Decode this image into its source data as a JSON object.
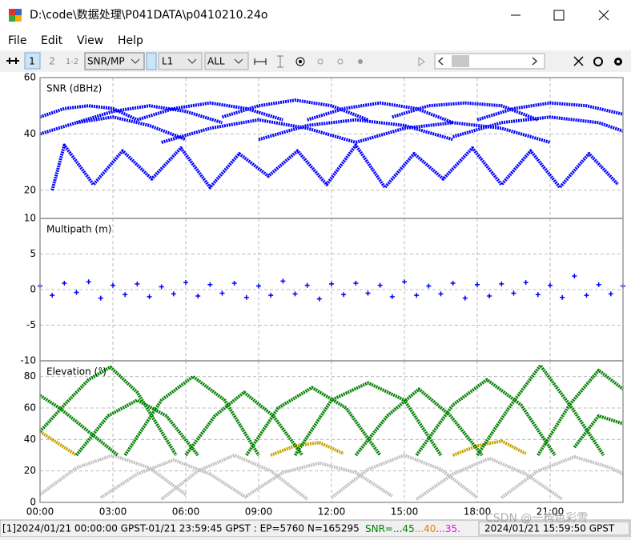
{
  "window": {
    "title": "D:\\code\\数据处理\\P041DATA\\p0410210.24o"
  },
  "menu": [
    "File",
    "Edit",
    "View",
    "Help"
  ],
  "toolbar": {
    "buttons": [
      "1",
      "2",
      "1-2"
    ],
    "selects": [
      "SNR/MP",
      "L1",
      "ALL"
    ]
  },
  "chart_data": [
    {
      "type": "line",
      "title": "SNR (dBHz)",
      "ylim": [
        10,
        60
      ],
      "yticks": [
        10,
        20,
        40,
        60
      ],
      "grid": true,
      "series": [
        {
          "color": "#0000ff",
          "x": [
            0,
            1,
            2,
            3,
            4
          ],
          "values": [
            46,
            49,
            50,
            49,
            45
          ]
        },
        {
          "color": "#0000ff",
          "x": [
            1.5,
            3,
            4.5,
            6,
            7.5
          ],
          "values": [
            44,
            48,
            50,
            48,
            44
          ]
        },
        {
          "color": "#0000ff",
          "x": [
            4,
            5.5,
            7,
            8.5,
            10
          ],
          "values": [
            45,
            49,
            51,
            49,
            45
          ]
        },
        {
          "color": "#0000ff",
          "x": [
            7.5,
            9,
            10.5,
            12,
            13.5
          ],
          "values": [
            46,
            50,
            52,
            50,
            45
          ]
        },
        {
          "color": "#0000ff",
          "x": [
            11,
            12.5,
            14,
            15.5,
            17
          ],
          "values": [
            45,
            49,
            51,
            49,
            44
          ]
        },
        {
          "color": "#0000ff",
          "x": [
            14.5,
            16,
            17.5,
            19,
            20.5
          ],
          "values": [
            46,
            50,
            51,
            50,
            45
          ]
        },
        {
          "color": "#0000ff",
          "x": [
            18,
            19.5,
            21,
            22.5,
            24
          ],
          "values": [
            45,
            49,
            51,
            50,
            47
          ]
        },
        {
          "color": "#0000ff",
          "x": [
            0,
            1.5,
            3,
            4.5,
            6
          ],
          "values": [
            40,
            44,
            46,
            43,
            38
          ]
        },
        {
          "color": "#0000ff",
          "x": [
            5,
            7,
            9,
            11,
            13
          ],
          "values": [
            37,
            42,
            45,
            42,
            37
          ]
        },
        {
          "color": "#0000ff",
          "x": [
            9,
            11,
            13,
            15,
            17
          ],
          "values": [
            38,
            43,
            45,
            43,
            38
          ]
        },
        {
          "color": "#0000ff",
          "x": [
            13,
            15,
            17,
            19,
            21
          ],
          "values": [
            37,
            42,
            44,
            42,
            37
          ]
        },
        {
          "color": "#0000ff",
          "x": [
            17,
            19,
            21,
            23,
            24
          ],
          "values": [
            39,
            44,
            46,
            44,
            41
          ]
        },
        {
          "color": "#0000ff",
          "x": [
            0.5,
            1,
            2.2,
            3.4,
            4.6,
            5.8,
            7,
            8.2,
            9.4,
            10.6,
            11.8,
            13,
            14.2,
            15.4,
            16.6,
            17.8,
            19,
            20.2,
            21.4,
            22.6,
            23.8
          ],
          "values": [
            20,
            36,
            22,
            34,
            24,
            35,
            21,
            33,
            25,
            34,
            22,
            36,
            21,
            33,
            24,
            35,
            22,
            34,
            21,
            33,
            22
          ]
        }
      ]
    },
    {
      "type": "scatter",
      "title": "Multipath (m)",
      "ylim": [
        -10,
        10
      ],
      "yticks": [
        -10,
        -5,
        0,
        5
      ],
      "grid": true,
      "series": [
        {
          "color": "#0000ff",
          "x": [
            0,
            0.5,
            1,
            1.5,
            2,
            2.5,
            3,
            3.5,
            4,
            4.5,
            5,
            5.5,
            6,
            6.5,
            7,
            7.5,
            8,
            8.5,
            9,
            9.5,
            10,
            10.5,
            11,
            11.5,
            12,
            12.5,
            13,
            13.5,
            14,
            14.5,
            15,
            15.5,
            16,
            16.5,
            17,
            17.5,
            18,
            18.5,
            19,
            19.5,
            20,
            20.5,
            21,
            21.5,
            22,
            22.5,
            23,
            23.5,
            24
          ],
          "values": [
            0.5,
            -0.8,
            0.9,
            -0.4,
            1.1,
            -1.2,
            0.6,
            -0.7,
            0.8,
            -1.0,
            0.4,
            -0.6,
            1.0,
            -0.9,
            0.7,
            -0.5,
            0.9,
            -1.1,
            0.5,
            -0.8,
            1.2,
            -0.6,
            0.6,
            -1.3,
            0.8,
            -0.7,
            0.9,
            -0.5,
            0.6,
            -1.0,
            1.1,
            -0.8,
            0.5,
            -0.6,
            0.9,
            -1.2,
            0.7,
            -0.9,
            0.8,
            -0.5,
            1.0,
            -0.7,
            0.6,
            -1.1,
            1.9,
            -0.8,
            0.7,
            -0.6,
            0.5
          ]
        }
      ]
    },
    {
      "type": "line",
      "title": "Elevation (°)",
      "ylim": [
        0,
        90
      ],
      "yticks": [
        0,
        20,
        40,
        60,
        80
      ],
      "grid": true,
      "xlim": [
        0,
        24
      ],
      "xticks": [
        {
          "value": 0,
          "label": "00:00"
        },
        {
          "value": 3,
          "label": "03:00"
        },
        {
          "value": 6,
          "label": "06:00"
        },
        {
          "value": 9,
          "label": "09:00"
        },
        {
          "value": 12,
          "label": "12:00"
        },
        {
          "value": 15,
          "label": "15:00"
        },
        {
          "value": 18,
          "label": "18:00"
        },
        {
          "value": 21,
          "label": "21:00"
        }
      ],
      "series": [
        {
          "color": "#c0c0c0",
          "x": [
            0,
            1.5,
            3,
            4.5,
            6
          ],
          "values": [
            5,
            22,
            30,
            22,
            5
          ]
        },
        {
          "color": "#c0c0c0",
          "x": [
            2.5,
            4,
            5.5,
            7,
            8.5
          ],
          "values": [
            3,
            18,
            27,
            18,
            3
          ]
        },
        {
          "color": "#c0c0c0",
          "x": [
            5,
            6.5,
            8,
            9.5,
            11
          ],
          "values": [
            2,
            20,
            30,
            20,
            2
          ]
        },
        {
          "color": "#c0c0c0",
          "x": [
            8.5,
            10,
            11.5,
            13,
            14.5
          ],
          "values": [
            4,
            19,
            25,
            19,
            4
          ]
        },
        {
          "color": "#c0c0c0",
          "x": [
            12,
            13.5,
            15,
            16.5,
            18
          ],
          "values": [
            3,
            21,
            30,
            21,
            3
          ]
        },
        {
          "color": "#c0c0c0",
          "x": [
            15.5,
            17,
            18.5,
            20,
            21.5
          ],
          "values": [
            2,
            18,
            28,
            18,
            2
          ]
        },
        {
          "color": "#c0c0c0",
          "x": [
            19,
            20.5,
            22,
            23.5,
            24
          ],
          "values": [
            3,
            20,
            29,
            22,
            18
          ]
        },
        {
          "color": "#c8a000",
          "x": [
            0,
            0.5,
            1,
            1.5
          ],
          "values": [
            45,
            40,
            35,
            30
          ]
        },
        {
          "color": "#c8a000",
          "x": [
            9.5,
            10.5,
            11.5,
            12.5
          ],
          "values": [
            30,
            36,
            38,
            31
          ]
        },
        {
          "color": "#c8a000",
          "x": [
            17,
            18,
            19,
            20
          ],
          "values": [
            30,
            36,
            39,
            31
          ]
        },
        {
          "color": "#008000",
          "x": [
            0,
            0.8,
            1.6,
            2.4,
            3.2
          ],
          "values": [
            68,
            60,
            50,
            40,
            30
          ]
        },
        {
          "color": "#008000",
          "x": [
            0,
            1,
            2,
            2.9,
            4,
            5,
            5.6
          ],
          "values": [
            45,
            62,
            78,
            86,
            70,
            45,
            30
          ]
        },
        {
          "color": "#008000",
          "x": [
            1.5,
            2.8,
            4,
            5.2,
            6.5
          ],
          "values": [
            30,
            55,
            65,
            55,
            30
          ]
        },
        {
          "color": "#008000",
          "x": [
            3.5,
            5,
            6.3,
            7.6,
            9
          ],
          "values": [
            30,
            65,
            80,
            65,
            30
          ]
        },
        {
          "color": "#008000",
          "x": [
            6,
            7.2,
            8.4,
            9.6,
            10.8
          ],
          "values": [
            30,
            55,
            70,
            55,
            30
          ]
        },
        {
          "color": "#008000",
          "x": [
            8.5,
            9.8,
            11.2,
            12.6,
            14
          ],
          "values": [
            30,
            60,
            73,
            60,
            30
          ]
        },
        {
          "color": "#008000",
          "x": [
            10.5,
            12,
            13.5,
            15,
            16.5
          ],
          "values": [
            30,
            65,
            76,
            65,
            30
          ]
        },
        {
          "color": "#008000",
          "x": [
            13,
            14.3,
            15.6,
            16.9,
            18.2
          ],
          "values": [
            30,
            55,
            72,
            55,
            30
          ]
        },
        {
          "color": "#008000",
          "x": [
            15.5,
            17,
            18.4,
            19.8,
            21.2
          ],
          "values": [
            30,
            62,
            78,
            62,
            30
          ]
        },
        {
          "color": "#008000",
          "x": [
            18,
            19.3,
            20.6,
            21.9,
            23.2
          ],
          "values": [
            30,
            60,
            87,
            60,
            30
          ]
        },
        {
          "color": "#008000",
          "x": [
            20.5,
            21.8,
            23,
            24
          ],
          "values": [
            30,
            62,
            84,
            72
          ]
        },
        {
          "color": "#008000",
          "x": [
            22,
            23,
            24
          ],
          "values": [
            35,
            55,
            50
          ]
        }
      ]
    }
  ],
  "status": {
    "text": "[1]2024/01/21 00:00:00 GPST-01/21 23:59:45 GPST : EP=5760 N=165295",
    "snr": [
      {
        "text": "SNR=...45",
        "color": "#008000"
      },
      {
        "text": "...40",
        "color": "#e08000"
      },
      {
        "text": "...35.",
        "color": "#ff00ff"
      }
    ],
    "time": "2024/01/21 15:59:50 GPST"
  },
  "watermark": "CSDN @一枸色彩雪"
}
